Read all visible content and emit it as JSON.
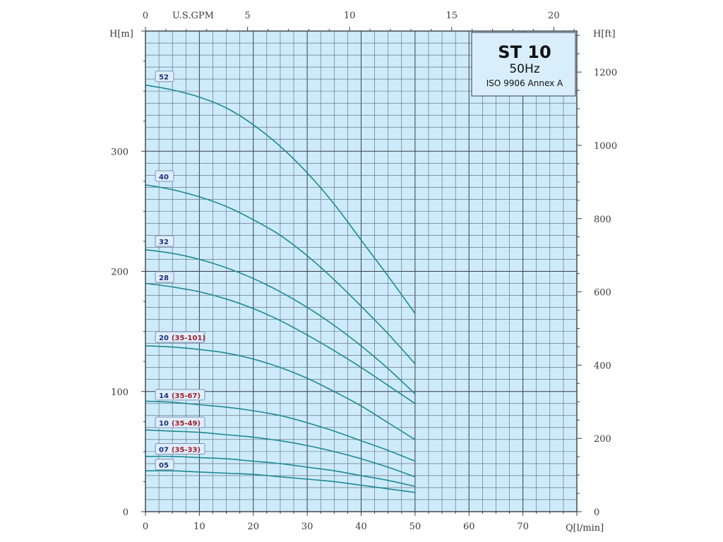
{
  "chart_data": {
    "type": "line",
    "title": "ST 10",
    "subtitle": "50Hz",
    "standard": "ISO 9906 Annex A",
    "xlabel": "Q[l/min]",
    "ylabel": "H[m]",
    "y2label": "H[ft]",
    "x2label": "U.S.GPM",
    "xlim": [
      0,
      80
    ],
    "ylim": [
      0,
      400
    ],
    "y2lim": [
      0,
      1312
    ],
    "x2lim": [
      0,
      21.13
    ],
    "x_ticks": [
      0,
      10,
      20,
      30,
      40,
      50,
      60,
      70
    ],
    "y_ticks": [
      0,
      100,
      200,
      300
    ],
    "y2_ticks": [
      0,
      200,
      400,
      600,
      800,
      1000,
      1200
    ],
    "x2_ticks": [
      0,
      5,
      10,
      15,
      20
    ],
    "grid": true,
    "legend": "inline-labels-left",
    "series": [
      {
        "name": "52",
        "range": "",
        "x": [
          0,
          5,
          10,
          15,
          20,
          25,
          30,
          35,
          40,
          45,
          50
        ],
        "y": [
          355,
          351,
          345,
          336,
          322,
          304,
          282,
          256,
          226,
          196,
          165
        ]
      },
      {
        "name": "40",
        "range": "",
        "x": [
          0,
          5,
          10,
          15,
          20,
          25,
          30,
          35,
          40,
          45,
          50
        ],
        "y": [
          272,
          268,
          262,
          254,
          243,
          230,
          213,
          193,
          171,
          148,
          123
        ]
      },
      {
        "name": "32",
        "range": "",
        "x": [
          0,
          5,
          10,
          15,
          20,
          25,
          30,
          35,
          40,
          45,
          50
        ],
        "y": [
          218,
          215,
          210,
          203,
          194,
          183,
          170,
          155,
          138,
          119,
          98
        ]
      },
      {
        "name": "28",
        "range": "",
        "x": [
          0,
          5,
          10,
          15,
          20,
          25,
          30,
          35,
          40,
          45,
          50
        ],
        "y": [
          190,
          187,
          183,
          177,
          169,
          159,
          147,
          134,
          120,
          105,
          90
        ]
      },
      {
        "name": "20",
        "range": "(35-101)",
        "x": [
          0,
          5,
          10,
          15,
          20,
          25,
          30,
          35,
          40,
          45,
          50
        ],
        "y": [
          138,
          137,
          135,
          132,
          127,
          120,
          111,
          100,
          88,
          74,
          60
        ]
      },
      {
        "name": "14",
        "range": "(35-67)",
        "x": [
          0,
          5,
          10,
          15,
          20,
          25,
          30,
          35,
          40,
          45,
          50
        ],
        "y": [
          92,
          91,
          89,
          87,
          84,
          80,
          74,
          67,
          59,
          51,
          42
        ]
      },
      {
        "name": "10",
        "range": "(35-49)",
        "x": [
          0,
          5,
          10,
          15,
          20,
          25,
          30,
          35,
          40,
          45,
          50
        ],
        "y": [
          68,
          67,
          66,
          64,
          62,
          59,
          55,
          50,
          44,
          37,
          29
        ]
      },
      {
        "name": "07",
        "range": "(35-33)",
        "x": [
          0,
          5,
          10,
          15,
          20,
          25,
          30,
          35,
          40,
          45,
          50
        ],
        "y": [
          46,
          46,
          45,
          44,
          42,
          40,
          37,
          34,
          30,
          26,
          21
        ]
      },
      {
        "name": "05",
        "range": "",
        "x": [
          0,
          5,
          10,
          15,
          20,
          25,
          30,
          35,
          40,
          45,
          50
        ],
        "y": [
          34,
          34,
          33,
          32,
          31,
          29,
          27,
          25,
          22,
          19,
          16
        ]
      }
    ],
    "label_y": [
      362,
      279,
      225,
      195,
      145,
      97,
      74,
      52,
      39
    ]
  }
}
